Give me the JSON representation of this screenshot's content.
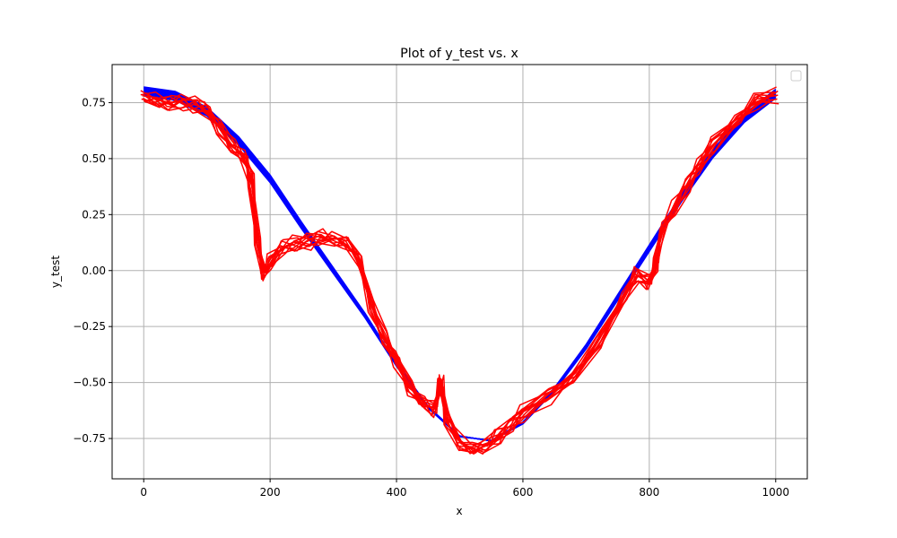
{
  "chart_data": {
    "type": "line",
    "title": "Plot of y_test vs. x",
    "xlabel": "x",
    "ylabel": "y_test",
    "xlim": [
      -50,
      1050
    ],
    "ylim": [
      -0.93,
      0.92
    ],
    "x_ticks": [
      0,
      200,
      400,
      600,
      800,
      1000
    ],
    "y_ticks": [
      -0.75,
      -0.5,
      -0.25,
      0.0,
      0.25,
      0.5,
      0.75
    ],
    "x_tick_labels": [
      "0",
      "200",
      "400",
      "600",
      "800",
      "1000"
    ],
    "y_tick_labels": [
      "−0.75",
      "−0.50",
      "−0.25",
      "0.00",
      "0.25",
      "0.50",
      "0.75"
    ],
    "grid": true,
    "legend": {
      "placement": "top-right",
      "entries": []
    },
    "colors": {
      "model": "#0000ff",
      "test": "#ff0000",
      "grid": "#b0b0b0"
    },
    "series": [
      {
        "color": "#0000ff",
        "band_width": 0.02,
        "x": [
          0,
          50,
          100,
          150,
          200,
          250,
          300,
          350,
          400,
          450,
          500,
          550,
          600,
          650,
          700,
          750,
          800,
          850,
          900,
          950,
          1000
        ],
        "y": [
          0.8,
          0.78,
          0.71,
          0.58,
          0.41,
          0.2,
          0.0,
          -0.2,
          -0.42,
          -0.61,
          -0.74,
          -0.76,
          -0.68,
          -0.53,
          -0.34,
          -0.12,
          0.1,
          0.32,
          0.52,
          0.68,
          0.79
        ]
      },
      {
        "color": "#ff0000",
        "x": [
          0,
          20,
          40,
          60,
          80,
          100,
          120,
          140,
          160,
          170,
          180,
          190,
          200,
          220,
          240,
          260,
          280,
          300,
          320,
          340,
          360,
          380,
          400,
          420,
          440,
          460,
          470,
          480,
          500,
          520,
          540,
          560,
          580,
          600,
          640,
          680,
          720,
          760,
          780,
          800,
          810,
          820,
          840,
          860,
          880,
          900,
          940,
          970,
          1000
        ],
        "y": [
          0.77,
          0.76,
          0.75,
          0.75,
          0.74,
          0.72,
          0.64,
          0.55,
          0.5,
          0.4,
          0.12,
          -0.02,
          0.04,
          0.11,
          0.12,
          0.13,
          0.15,
          0.14,
          0.12,
          0.05,
          -0.15,
          -0.3,
          -0.4,
          -0.52,
          -0.58,
          -0.62,
          -0.5,
          -0.66,
          -0.77,
          -0.8,
          -0.79,
          -0.74,
          -0.69,
          -0.64,
          -0.56,
          -0.47,
          -0.32,
          -0.12,
          -0.02,
          -0.05,
          0.02,
          0.18,
          0.28,
          0.38,
          0.47,
          0.56,
          0.68,
          0.76,
          0.78
        ]
      }
    ]
  }
}
